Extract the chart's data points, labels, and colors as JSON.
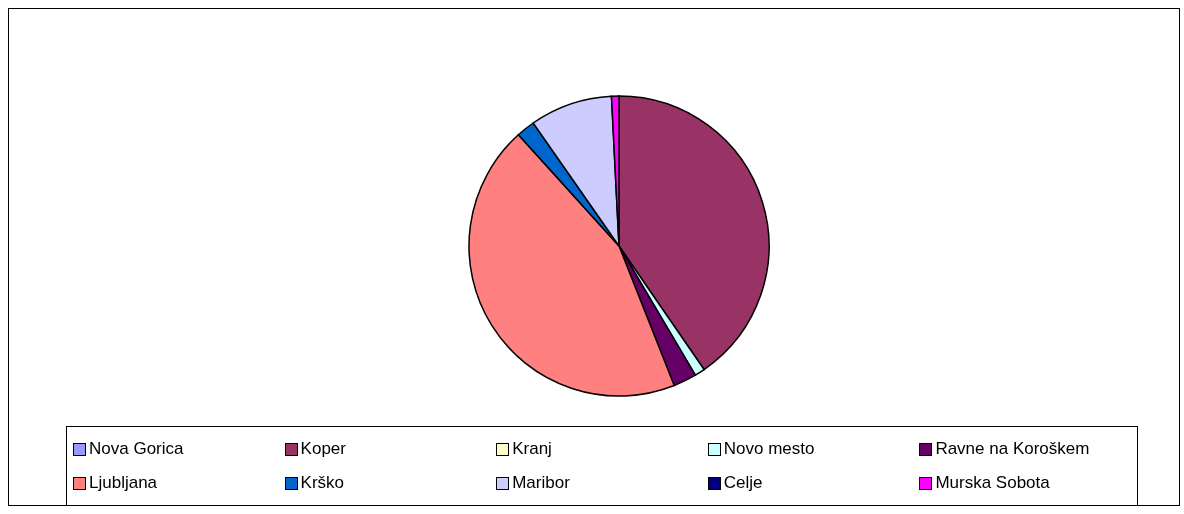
{
  "chart_data": {
    "type": "pie",
    "categories": [
      "Nova Gorica",
      "Koper",
      "Kranj",
      "Novo mesto",
      "Ravne na Koroškem",
      "Ljubljana",
      "Krško",
      "Maribor",
      "Celje",
      "Murska Sobota"
    ],
    "values": [
      0,
      40.4,
      0,
      1.1,
      2.5,
      44.3,
      2,
      8.9,
      0,
      0.8
    ],
    "colors": [
      "#9999ff",
      "#993366",
      "#ffffcc",
      "#ccffff",
      "#660066",
      "#ff8080",
      "#0066cc",
      "#ccccff",
      "#000080",
      "#ff00ff"
    ],
    "legend": "bottom"
  }
}
